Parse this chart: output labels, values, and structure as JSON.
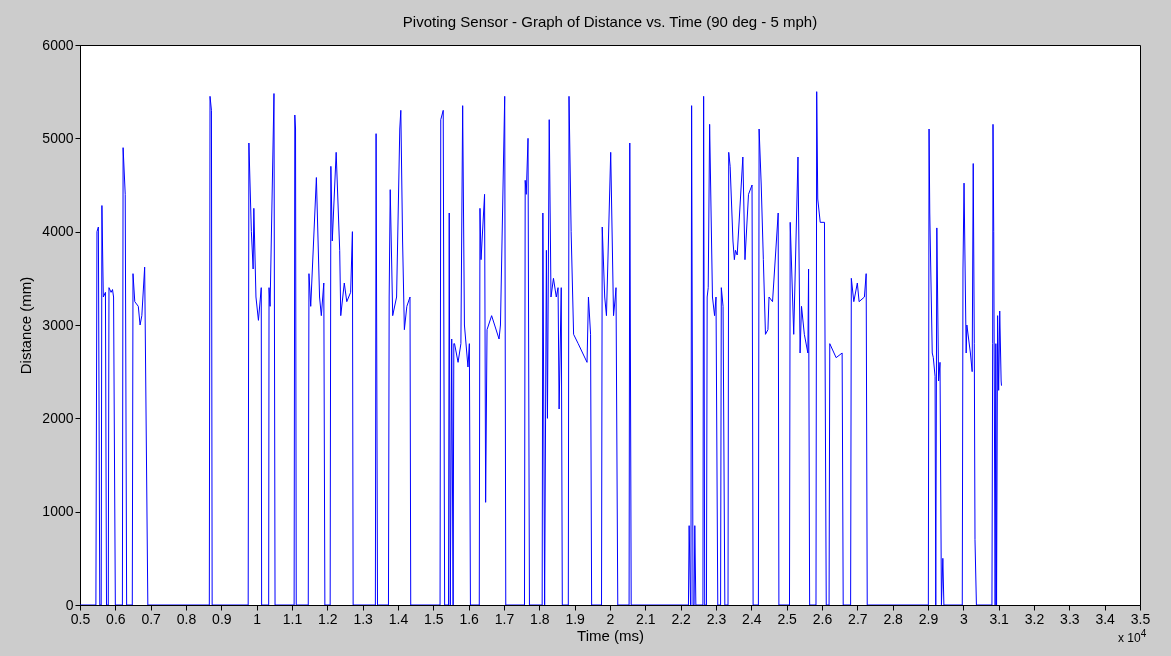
{
  "chart_data": {
    "type": "line",
    "title": "Pivoting Sensor - Graph of Distance vs. Time (90 deg - 5 mph)",
    "xlabel": "Time (ms)",
    "ylabel": "Distance (mm)",
    "annotations": [
      "x 10$^{4}$"
    ],
    "xlim": [
      0.5,
      3.5
    ],
    "ylim": [
      0,
      6000
    ],
    "xticks": [
      0.5,
      0.6,
      0.7,
      0.8,
      0.9,
      1,
      1.1,
      1.2,
      1.3,
      1.4,
      1.5,
      1.6,
      1.7,
      1.8,
      1.9,
      2,
      2.1,
      2.2,
      2.3,
      2.4,
      2.5,
      2.6,
      2.7,
      2.8,
      2.9,
      3,
      3.1,
      3.2,
      3.3,
      3.4,
      3.5
    ],
    "yticks": [
      0,
      1000,
      2000,
      3000,
      4000,
      5000,
      6000
    ],
    "series": [
      {
        "color": "#0000ff",
        "x": [
          0.5,
          0.545,
          0.548,
          0.552,
          0.556,
          0.56,
          0.562,
          0.566,
          0.572,
          0.575,
          0.58,
          0.582,
          0.588,
          0.592,
          0.595,
          0.6,
          0.62,
          0.622,
          0.628,
          0.632,
          0.648,
          0.65,
          0.655,
          0.665,
          0.67,
          0.675,
          0.683,
          0.692,
          0.866,
          0.868,
          0.872,
          0.874,
          0.976,
          0.978,
          0.985,
          0.99,
          0.992,
          0.998,
          1.005,
          1.013,
          1.014,
          1.034,
          1.035,
          1.038,
          1.049,
          1.052,
          1.106,
          1.108,
          1.11,
          1.112,
          1.146,
          1.148,
          1.153,
          1.169,
          1.178,
          1.183,
          1.19,
          1.193,
          1.208,
          1.21,
          1.214,
          1.225,
          1.235,
          1.238,
          1.248,
          1.255,
          1.266,
          1.271,
          1.273,
          1.336,
          1.338,
          1.342,
          1.373,
          1.375,
          1.378,
          1.385,
          1.396,
          1.405,
          1.408,
          1.413,
          1.418,
          1.425,
          1.434,
          1.436,
          1.519,
          1.521,
          1.528,
          1.532,
          1.543,
          1.545,
          1.548,
          1.552,
          1.556,
          1.558,
          1.56,
          1.57,
          1.578,
          1.583,
          1.588,
          1.598,
          1.602,
          1.605,
          1.63,
          1.632,
          1.635,
          1.645,
          1.648,
          1.652,
          1.665,
          1.686,
          1.69,
          1.702,
          1.705,
          1.758,
          1.76,
          1.763,
          1.768,
          1.772,
          1.808,
          1.81,
          1.815,
          1.82,
          1.823,
          1.828,
          1.833,
          1.84,
          1.848,
          1.853,
          1.856,
          1.862,
          1.865,
          1.882,
          1.884,
          1.89,
          1.897,
          1.91,
          1.935,
          1.939,
          1.945,
          1.948,
          1.976,
          1.978,
          1.985,
          1.99,
          2.002,
          2.01,
          2.015,
          2.017,
          2.022,
          2.054,
          2.056,
          2.06,
          2.222,
          2.224,
          2.228,
          2.229,
          2.231,
          2.235,
          2.238,
          2.24,
          2.243,
          2.263,
          2.265,
          2.268,
          2.273,
          2.275,
          2.278,
          2.282,
          2.29,
          2.296,
          2.3,
          2.305,
          2.313,
          2.315,
          2.32,
          2.325,
          2.334,
          2.336,
          2.34,
          2.348,
          2.352,
          2.355,
          2.36,
          2.376,
          2.382,
          2.392,
          2.402,
          2.405,
          2.42,
          2.422,
          2.428,
          2.434,
          2.44,
          2.447,
          2.45,
          2.46,
          2.476,
          2.478,
          2.508,
          2.51,
          2.52,
          2.532,
          2.538,
          2.542,
          2.55,
          2.56,
          2.562,
          2.565,
          2.583,
          2.585,
          2.588,
          2.595,
          2.607,
          2.612,
          2.62,
          2.622,
          2.64,
          2.657,
          2.66,
          2.681,
          2.683,
          2.69,
          2.7,
          2.705,
          2.72,
          2.725,
          2.728,
          2.901,
          2.903,
          2.905,
          2.912,
          2.915,
          2.92,
          2.922,
          2.925,
          2.93,
          2.934,
          2.938,
          2.942,
          2.945,
          2.997,
          2.999,
          3.002,
          3.008,
          3.01,
          3.02,
          3.025,
          3.028,
          3.031,
          3.033,
          3.037,
          3.081,
          3.083,
          3.084,
          3.086,
          3.09,
          3.092,
          3.094,
          3.097,
          3.1,
          3.103,
          3.107,
          3.108
        ],
        "values": [
          0,
          0,
          4000,
          4050,
          0,
          0,
          4280,
          3300,
          3350,
          0,
          0,
          3400,
          3350,
          3380,
          3300,
          0,
          0,
          4900,
          4400,
          0,
          0,
          3550,
          3250,
          3200,
          3000,
          3100,
          3620,
          0,
          0,
          5450,
          5300,
          0,
          0,
          4950,
          4000,
          3600,
          4250,
          3300,
          3050,
          3400,
          0,
          0,
          3400,
          3200,
          5480,
          0,
          0,
          5250,
          5100,
          0,
          0,
          3550,
          3200,
          4580,
          3300,
          3100,
          3450,
          0,
          0,
          4700,
          3900,
          4850,
          3800,
          3100,
          3450,
          3250,
          3350,
          4000,
          0,
          0,
          5050,
          0,
          0,
          3300,
          4450,
          3100,
          3300,
          5100,
          5300,
          3900,
          2950,
          3200,
          3300,
          0,
          0,
          5200,
          5300,
          0,
          0,
          4200,
          0,
          2850,
          0,
          2800,
          2800,
          2600,
          2800,
          5350,
          3000,
          2550,
          2800,
          0,
          0,
          4250,
          3700,
          4400,
          1100,
          2950,
          3100,
          2850,
          3000,
          5450,
          0,
          0,
          4550,
          4400,
          5000,
          0,
          0,
          4200,
          0,
          3800,
          2000,
          5200,
          3300,
          3500,
          3300,
          3400,
          2100,
          3400,
          0,
          0,
          5450,
          4000,
          2900,
          2800,
          2600,
          3300,
          2900,
          0,
          0,
          4050,
          3300,
          3100,
          4850,
          3100,
          3300,
          3400,
          0,
          0,
          4950,
          0,
          0,
          850,
          0,
          0,
          5350,
          0,
          0,
          850,
          0,
          0,
          5450,
          0,
          0,
          3300,
          3400,
          5150,
          3300,
          3100,
          3300,
          0,
          0,
          3400,
          3200,
          0,
          0,
          4850,
          4700,
          3900,
          3700,
          3800,
          3750,
          4800,
          3700,
          4400,
          4500,
          0,
          0,
          5100,
          4500,
          3700,
          2900,
          2950,
          3300,
          3250,
          4200,
          0,
          0,
          4100,
          2900,
          4800,
          2700,
          3200,
          2900,
          2700,
          3600,
          0,
          0,
          5500,
          4350,
          4100,
          4100,
          0,
          0,
          2800,
          2650,
          2700,
          0,
          0,
          3500,
          3250,
          3450,
          3250,
          3300,
          3550,
          0,
          0,
          5100,
          4200,
          2700,
          2650,
          2450,
          0,
          4040,
          2400,
          2600,
          0,
          500,
          0,
          0,
          3600,
          4520,
          2700,
          3000,
          2700,
          2500,
          4730,
          2800,
          700,
          0,
          0,
          2800,
          5150,
          4000,
          0,
          2800,
          0,
          3100,
          2300,
          3150,
          2400,
          2350
        ]
      }
    ]
  }
}
